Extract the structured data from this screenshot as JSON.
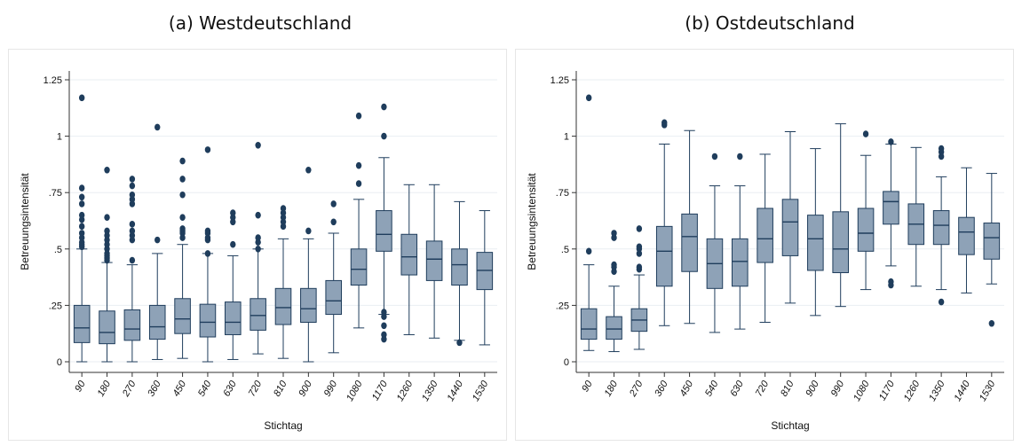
{
  "colors": {
    "box_fill": "#8ea2b7",
    "box_stroke": "#1f3d5c",
    "outlier": "#1f3d5c",
    "grid": "#eaeef2",
    "axis": "#333333"
  },
  "chart_data": [
    {
      "type": "box",
      "title": "(a) Westdeutschland",
      "xlabel": "Stichtag",
      "ylabel": "Betreuungsintensität",
      "ylim": [
        0,
        1.25
      ],
      "yticks": [
        0,
        0.25,
        0.5,
        0.75,
        1,
        1.25
      ],
      "ytick_labels": [
        "0",
        ".25",
        ".5",
        ".75",
        "1",
        "1.25"
      ],
      "grid": true,
      "categories": [
        "90",
        "180",
        "270",
        "360",
        "450",
        "540",
        "630",
        "720",
        "810",
        "900",
        "990",
        "1080",
        "1170",
        "1260",
        "1350",
        "1440",
        "1530"
      ],
      "boxes": [
        {
          "min": 0.0,
          "q1": 0.085,
          "median": 0.15,
          "q3": 0.25,
          "max": 0.5,
          "outliers": [
            0.51,
            0.52,
            0.53,
            0.55,
            0.57,
            0.6,
            0.63,
            0.65,
            0.7,
            0.73,
            0.77,
            1.17
          ]
        },
        {
          "min": 0.0,
          "q1": 0.08,
          "median": 0.13,
          "q3": 0.225,
          "max": 0.44,
          "outliers": [
            0.45,
            0.46,
            0.47,
            0.48,
            0.5,
            0.52,
            0.54,
            0.56,
            0.58,
            0.64,
            0.85
          ]
        },
        {
          "min": 0.0,
          "q1": 0.095,
          "median": 0.145,
          "q3": 0.23,
          "max": 0.43,
          "outliers": [
            0.45,
            0.54,
            0.56,
            0.58,
            0.61,
            0.7,
            0.72,
            0.74,
            0.78,
            0.81
          ]
        },
        {
          "min": 0.01,
          "q1": 0.1,
          "median": 0.155,
          "q3": 0.25,
          "max": 0.48,
          "outliers": [
            0.54,
            1.04
          ]
        },
        {
          "min": 0.015,
          "q1": 0.125,
          "median": 0.19,
          "q3": 0.28,
          "max": 0.52,
          "outliers": [
            0.55,
            0.57,
            0.58,
            0.59,
            0.64,
            0.74,
            0.81,
            0.89
          ]
        },
        {
          "min": 0.0,
          "q1": 0.11,
          "median": 0.175,
          "q3": 0.255,
          "max": 0.48,
          "outliers": [
            0.48,
            0.54,
            0.55,
            0.57,
            0.58,
            0.94
          ]
        },
        {
          "min": 0.01,
          "q1": 0.12,
          "median": 0.175,
          "q3": 0.265,
          "max": 0.47,
          "outliers": [
            0.52,
            0.62,
            0.64,
            0.66
          ]
        },
        {
          "min": 0.035,
          "q1": 0.14,
          "median": 0.205,
          "q3": 0.28,
          "max": 0.5,
          "outliers": [
            0.5,
            0.53,
            0.55,
            0.65,
            0.96
          ]
        },
        {
          "min": 0.015,
          "q1": 0.165,
          "median": 0.24,
          "q3": 0.325,
          "max": 0.545,
          "outliers": [
            0.6,
            0.62,
            0.64,
            0.66,
            0.68
          ]
        },
        {
          "min": 0.0,
          "q1": 0.175,
          "median": 0.235,
          "q3": 0.325,
          "max": 0.545,
          "outliers": [
            0.58,
            0.85
          ]
        },
        {
          "min": 0.04,
          "q1": 0.21,
          "median": 0.27,
          "q3": 0.36,
          "max": 0.57,
          "outliers": [
            0.62,
            0.7
          ]
        },
        {
          "min": 0.15,
          "q1": 0.34,
          "median": 0.41,
          "q3": 0.5,
          "max": 0.72,
          "outliers": [
            0.79,
            0.87,
            1.09
          ]
        },
        {
          "min": 0.21,
          "q1": 0.49,
          "median": 0.565,
          "q3": 0.67,
          "max": 0.905,
          "outliers": [
            0.1,
            0.12,
            0.16,
            0.2,
            0.22,
            1.0,
            1.13
          ]
        },
        {
          "min": 0.12,
          "q1": 0.385,
          "median": 0.465,
          "q3": 0.565,
          "max": 0.785,
          "outliers": []
        },
        {
          "min": 0.105,
          "q1": 0.36,
          "median": 0.455,
          "q3": 0.535,
          "max": 0.785,
          "outliers": []
        },
        {
          "min": 0.095,
          "q1": 0.34,
          "median": 0.43,
          "q3": 0.5,
          "max": 0.71,
          "outliers": [
            0.085
          ]
        },
        {
          "min": 0.075,
          "q1": 0.32,
          "median": 0.405,
          "q3": 0.485,
          "max": 0.67,
          "outliers": []
        }
      ]
    },
    {
      "type": "box",
      "title": "(b) Ostdeutschland",
      "xlabel": "Stichtag",
      "ylabel": "Betreuungsintensität",
      "ylim": [
        0,
        1.25
      ],
      "yticks": [
        0,
        0.25,
        0.5,
        0.75,
        1,
        1.25
      ],
      "ytick_labels": [
        "0",
        ".25",
        ".5",
        ".75",
        "1",
        "1.25"
      ],
      "grid": true,
      "categories": [
        "90",
        "180",
        "270",
        "360",
        "450",
        "540",
        "630",
        "720",
        "810",
        "900",
        "990",
        "1080",
        "1170",
        "1260",
        "1350",
        "1440",
        "1530"
      ],
      "boxes": [
        {
          "min": 0.05,
          "q1": 0.1,
          "median": 0.145,
          "q3": 0.235,
          "max": 0.43,
          "outliers": [
            0.49,
            1.17
          ]
        },
        {
          "min": 0.045,
          "q1": 0.1,
          "median": 0.145,
          "q3": 0.2,
          "max": 0.335,
          "outliers": [
            0.4,
            0.42,
            0.43,
            0.55,
            0.57
          ]
        },
        {
          "min": 0.055,
          "q1": 0.135,
          "median": 0.185,
          "q3": 0.235,
          "max": 0.385,
          "outliers": [
            0.41,
            0.42,
            0.48,
            0.5,
            0.51,
            0.59
          ]
        },
        {
          "min": 0.16,
          "q1": 0.335,
          "median": 0.49,
          "q3": 0.6,
          "max": 0.965,
          "outliers": [
            1.05,
            1.06
          ]
        },
        {
          "min": 0.17,
          "q1": 0.4,
          "median": 0.555,
          "q3": 0.655,
          "max": 1.025,
          "outliers": []
        },
        {
          "min": 0.13,
          "q1": 0.325,
          "median": 0.435,
          "q3": 0.545,
          "max": 0.78,
          "outliers": [
            0.91
          ]
        },
        {
          "min": 0.145,
          "q1": 0.335,
          "median": 0.445,
          "q3": 0.545,
          "max": 0.78,
          "outliers": [
            0.91
          ]
        },
        {
          "min": 0.175,
          "q1": 0.44,
          "median": 0.545,
          "q3": 0.68,
          "max": 0.92,
          "outliers": []
        },
        {
          "min": 0.26,
          "q1": 0.47,
          "median": 0.62,
          "q3": 0.72,
          "max": 1.02,
          "outliers": []
        },
        {
          "min": 0.205,
          "q1": 0.405,
          "median": 0.545,
          "q3": 0.65,
          "max": 0.945,
          "outliers": []
        },
        {
          "min": 0.245,
          "q1": 0.395,
          "median": 0.5,
          "q3": 0.665,
          "max": 1.055,
          "outliers": []
        },
        {
          "min": 0.32,
          "q1": 0.49,
          "median": 0.57,
          "q3": 0.68,
          "max": 0.915,
          "outliers": [
            1.01
          ]
        },
        {
          "min": 0.425,
          "q1": 0.61,
          "median": 0.71,
          "q3": 0.755,
          "max": 0.965,
          "outliers": [
            0.34,
            0.355,
            0.975
          ]
        },
        {
          "min": 0.335,
          "q1": 0.52,
          "median": 0.61,
          "q3": 0.7,
          "max": 0.95,
          "outliers": []
        },
        {
          "min": 0.32,
          "q1": 0.52,
          "median": 0.605,
          "q3": 0.67,
          "max": 0.82,
          "outliers": [
            0.265,
            0.91,
            0.93,
            0.945
          ]
        },
        {
          "min": 0.305,
          "q1": 0.475,
          "median": 0.575,
          "q3": 0.64,
          "max": 0.86,
          "outliers": []
        },
        {
          "min": 0.345,
          "q1": 0.455,
          "median": 0.55,
          "q3": 0.615,
          "max": 0.835,
          "outliers": [
            0.17
          ]
        }
      ]
    }
  ]
}
